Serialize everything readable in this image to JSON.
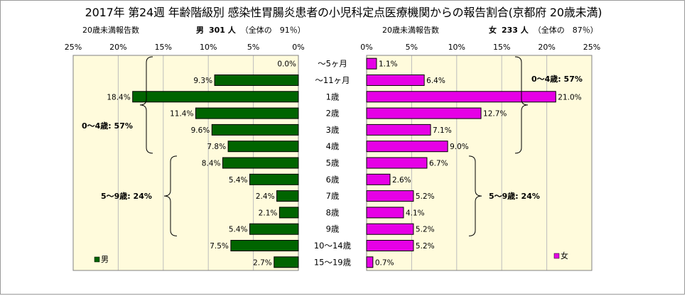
{
  "title": "2017年 第24週 年齢階級別 感染性胃腸炎患者の小児科定点医療機関からの報告割合(京都府 20歳未満)",
  "left": {
    "caption": "20歳未満報告数",
    "sex": "男",
    "count": "301 人",
    "share": "（全体の　91％）",
    "legend": "男",
    "color": "#006400",
    "plot_bg": "#fffbdc"
  },
  "right": {
    "caption": "20歳未満報告数",
    "sex": "女",
    "count": "233 人",
    "share": "（全体の　87％）",
    "legend": "女",
    "color": "#e600e6",
    "plot_bg": "#fffbdc"
  },
  "chart_data": {
    "type": "bar",
    "orientation": "horizontal-population-pyramid",
    "categories": [
      "～5ヶ月",
      "～11ヶ月",
      "1歳",
      "2歳",
      "3歳",
      "4歳",
      "5歳",
      "6歳",
      "7歳",
      "8歳",
      "9歳",
      "10～14歳",
      "15～19歳"
    ],
    "xlim": [
      0,
      25
    ],
    "x_ticks": [
      "25%",
      "20%",
      "15%",
      "10%",
      "5%",
      "0%"
    ],
    "x_ticks_right": [
      "0%",
      "5%",
      "10%",
      "15%",
      "20%",
      "25%"
    ],
    "grid": true,
    "series": [
      {
        "name": "男",
        "side": "left",
        "values": [
          0.0,
          9.3,
          18.4,
          11.4,
          9.6,
          7.8,
          8.4,
          5.4,
          2.4,
          2.1,
          5.4,
          7.5,
          2.7
        ],
        "labels": [
          "0.0%",
          "9.3%",
          "18.4%",
          "11.4%",
          "9.6%",
          "7.8%",
          "8.4%",
          "5.4%",
          "2.4%",
          "2.1%",
          "5.4%",
          "7.5%",
          "2.7%"
        ]
      },
      {
        "name": "女",
        "side": "right",
        "values": [
          1.1,
          6.4,
          21.0,
          12.7,
          7.1,
          9.0,
          6.7,
          2.6,
          5.2,
          4.1,
          5.2,
          5.2,
          0.7
        ],
        "labels": [
          "1.1%",
          "6.4%",
          "21.0%",
          "12.7%",
          "7.1%",
          "9.0%",
          "6.7%",
          "2.6%",
          "5.2%",
          "4.1%",
          "5.2%",
          "5.2%",
          "0.7%"
        ]
      }
    ],
    "annotations": {
      "left": [
        {
          "text": "0～4歳: 57%",
          "from": 0,
          "to": 5
        },
        {
          "text": "5～9歳: 24%",
          "from": 6,
          "to": 10
        }
      ],
      "right": [
        {
          "text": "0～4歳: 57%",
          "from": 0,
          "to": 5
        },
        {
          "text": "5～9歳: 24%",
          "from": 6,
          "to": 10
        }
      ]
    }
  }
}
